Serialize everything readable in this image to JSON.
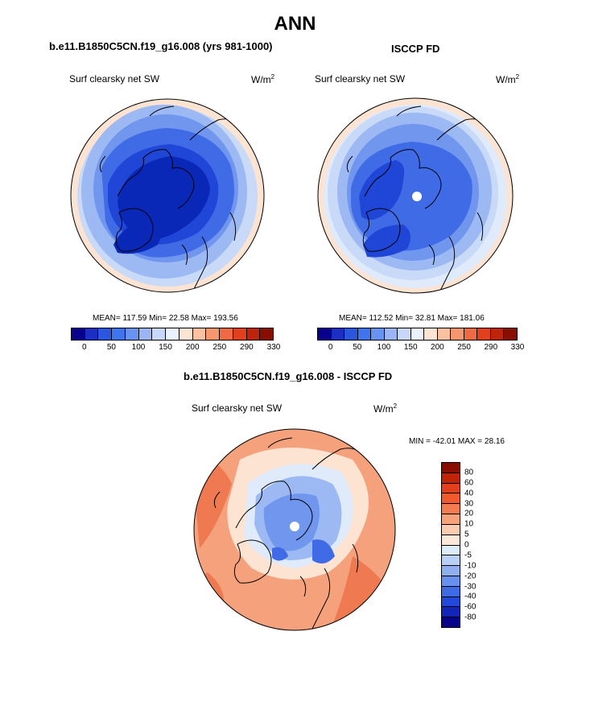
{
  "figure": {
    "title": "ANN"
  },
  "panels": [
    {
      "title": "b.e11.B1850C5CN.f19_g16.008 (yrs 981-1000)",
      "variable": "Surf clearsky net SW",
      "units_base": "W/m",
      "units_exp": "2",
      "stats": "MEAN= 117.59  Min=  22.58  Max= 193.56"
    },
    {
      "title": "ISCCP FD",
      "variable": "Surf clearsky net SW",
      "units_base": "W/m",
      "units_exp": "2",
      "stats": "MEAN= 112.52  Min=  32.81  Max= 181.06"
    }
  ],
  "diff_panel": {
    "title": "b.e11.B1850C5CN.f19_g16.008 - ISCCP FD",
    "variable": "Surf clearsky net SW",
    "units_base": "W/m",
    "units_exp": "2",
    "stats": "MIN = -42.01 MAX =  28.16"
  },
  "colorbar_abs": {
    "colors": [
      "#08008f",
      "#1c2fc4",
      "#2a56e0",
      "#3e74ee",
      "#6993f2",
      "#9cb6f5",
      "#c7d8fa",
      "#eaf2fd",
      "#fde3d2",
      "#fbc1a0",
      "#f69770",
      "#ef6a42",
      "#e23f1c",
      "#bf2408",
      "#8a0d02"
    ],
    "labels": [
      "0",
      "50",
      "100",
      "150",
      "200",
      "250",
      "290",
      "330"
    ]
  },
  "colorbar_diff": {
    "colors": [
      "#8a0d02",
      "#bf2408",
      "#e23f1c",
      "#f05a2c",
      "#f47c50",
      "#f8a27c",
      "#fccbb0",
      "#fde8da",
      "#ddebfb",
      "#b9cff5",
      "#8fafef",
      "#6890ee",
      "#3f6ae6",
      "#2448d9",
      "#1125b8",
      "#07048a"
    ],
    "labels": [
      "80",
      "60",
      "40",
      "30",
      "20",
      "10",
      "5",
      "0",
      "-5",
      "-10",
      "-20",
      "-30",
      "-40",
      "-60",
      "-80"
    ]
  },
  "map_colors": {
    "deep": "#0a28b8",
    "dark": "#1f46d6",
    "mid": "#3f6be6",
    "med": "#7096ee",
    "light": "#9db9f3",
    "pale": "#c8daf8",
    "paler": "#dfeafb",
    "peach": "#fde3d2",
    "orange": "#f4a17c",
    "red": "#ef7a52",
    "coast": "#000000"
  }
}
